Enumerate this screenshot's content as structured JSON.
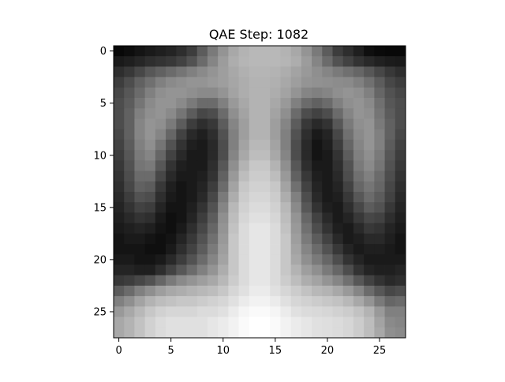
{
  "chart_data": {
    "type": "heatmap",
    "title": "QAE Step: 1082",
    "xlabel": "",
    "ylabel": "",
    "colormap": "gray",
    "rows": 28,
    "cols": 28,
    "x_ticks": [
      0,
      5,
      10,
      15,
      20,
      25
    ],
    "y_ticks": [
      0,
      5,
      10,
      15,
      20,
      25
    ],
    "xlim": [
      -0.5,
      27.5
    ],
    "ylim": [
      27.5,
      -0.5
    ],
    "value_range": [
      0,
      1
    ],
    "values": [
      [
        0.03,
        0.05,
        0.08,
        0.1,
        0.12,
        0.14,
        0.18,
        0.24,
        0.36,
        0.48,
        0.58,
        0.66,
        0.7,
        0.72,
        0.72,
        0.72,
        0.7,
        0.66,
        0.58,
        0.48,
        0.36,
        0.24,
        0.18,
        0.12,
        0.06,
        0.04,
        0.03,
        0.03
      ],
      [
        0.1,
        0.12,
        0.15,
        0.18,
        0.2,
        0.22,
        0.26,
        0.32,
        0.42,
        0.52,
        0.61,
        0.68,
        0.71,
        0.72,
        0.72,
        0.72,
        0.71,
        0.68,
        0.61,
        0.52,
        0.42,
        0.32,
        0.26,
        0.2,
        0.16,
        0.13,
        0.11,
        0.1
      ],
      [
        0.18,
        0.22,
        0.28,
        0.34,
        0.38,
        0.42,
        0.46,
        0.5,
        0.54,
        0.58,
        0.62,
        0.66,
        0.69,
        0.71,
        0.71,
        0.7,
        0.68,
        0.64,
        0.6,
        0.56,
        0.52,
        0.48,
        0.44,
        0.4,
        0.34,
        0.28,
        0.22,
        0.18
      ],
      [
        0.24,
        0.3,
        0.38,
        0.44,
        0.5,
        0.54,
        0.56,
        0.58,
        0.58,
        0.6,
        0.62,
        0.65,
        0.68,
        0.7,
        0.7,
        0.69,
        0.66,
        0.62,
        0.58,
        0.57,
        0.56,
        0.55,
        0.54,
        0.5,
        0.44,
        0.36,
        0.28,
        0.24
      ],
      [
        0.28,
        0.34,
        0.42,
        0.5,
        0.56,
        0.58,
        0.58,
        0.56,
        0.54,
        0.54,
        0.58,
        0.64,
        0.68,
        0.7,
        0.7,
        0.68,
        0.64,
        0.58,
        0.52,
        0.5,
        0.52,
        0.56,
        0.58,
        0.56,
        0.5,
        0.4,
        0.32,
        0.28
      ],
      [
        0.3,
        0.36,
        0.46,
        0.54,
        0.58,
        0.58,
        0.54,
        0.48,
        0.42,
        0.42,
        0.5,
        0.6,
        0.66,
        0.7,
        0.7,
        0.66,
        0.6,
        0.5,
        0.42,
        0.38,
        0.42,
        0.5,
        0.56,
        0.58,
        0.54,
        0.44,
        0.34,
        0.3
      ],
      [
        0.3,
        0.38,
        0.5,
        0.56,
        0.58,
        0.54,
        0.46,
        0.36,
        0.28,
        0.3,
        0.42,
        0.56,
        0.64,
        0.7,
        0.7,
        0.64,
        0.56,
        0.42,
        0.3,
        0.26,
        0.3,
        0.42,
        0.52,
        0.58,
        0.56,
        0.46,
        0.36,
        0.3
      ],
      [
        0.3,
        0.38,
        0.52,
        0.58,
        0.56,
        0.48,
        0.36,
        0.24,
        0.18,
        0.22,
        0.36,
        0.52,
        0.62,
        0.7,
        0.7,
        0.62,
        0.52,
        0.36,
        0.22,
        0.16,
        0.2,
        0.34,
        0.48,
        0.56,
        0.58,
        0.48,
        0.38,
        0.3
      ],
      [
        0.28,
        0.38,
        0.52,
        0.58,
        0.52,
        0.4,
        0.26,
        0.16,
        0.12,
        0.18,
        0.32,
        0.5,
        0.62,
        0.7,
        0.7,
        0.62,
        0.5,
        0.32,
        0.18,
        0.1,
        0.14,
        0.28,
        0.44,
        0.54,
        0.58,
        0.5,
        0.38,
        0.28
      ],
      [
        0.26,
        0.36,
        0.5,
        0.56,
        0.46,
        0.32,
        0.2,
        0.12,
        0.1,
        0.16,
        0.3,
        0.5,
        0.64,
        0.72,
        0.72,
        0.64,
        0.5,
        0.3,
        0.16,
        0.08,
        0.12,
        0.24,
        0.4,
        0.52,
        0.58,
        0.5,
        0.36,
        0.26
      ],
      [
        0.24,
        0.34,
        0.48,
        0.52,
        0.4,
        0.26,
        0.16,
        0.1,
        0.1,
        0.16,
        0.3,
        0.52,
        0.66,
        0.74,
        0.74,
        0.66,
        0.52,
        0.3,
        0.16,
        0.08,
        0.1,
        0.2,
        0.36,
        0.5,
        0.56,
        0.48,
        0.34,
        0.24
      ],
      [
        0.22,
        0.32,
        0.46,
        0.48,
        0.34,
        0.2,
        0.12,
        0.1,
        0.1,
        0.18,
        0.34,
        0.56,
        0.7,
        0.78,
        0.78,
        0.7,
        0.56,
        0.34,
        0.18,
        0.1,
        0.1,
        0.18,
        0.32,
        0.48,
        0.54,
        0.46,
        0.32,
        0.22
      ],
      [
        0.2,
        0.3,
        0.42,
        0.42,
        0.28,
        0.16,
        0.1,
        0.1,
        0.12,
        0.2,
        0.38,
        0.6,
        0.74,
        0.8,
        0.8,
        0.74,
        0.6,
        0.38,
        0.22,
        0.12,
        0.1,
        0.16,
        0.3,
        0.44,
        0.5,
        0.42,
        0.3,
        0.2
      ],
      [
        0.18,
        0.28,
        0.38,
        0.36,
        0.22,
        0.12,
        0.08,
        0.1,
        0.14,
        0.24,
        0.42,
        0.64,
        0.78,
        0.82,
        0.82,
        0.78,
        0.64,
        0.44,
        0.26,
        0.14,
        0.1,
        0.14,
        0.26,
        0.4,
        0.46,
        0.4,
        0.28,
        0.18
      ],
      [
        0.16,
        0.24,
        0.32,
        0.3,
        0.18,
        0.1,
        0.08,
        0.1,
        0.16,
        0.28,
        0.48,
        0.68,
        0.8,
        0.84,
        0.84,
        0.8,
        0.68,
        0.5,
        0.3,
        0.16,
        0.1,
        0.12,
        0.22,
        0.34,
        0.42,
        0.36,
        0.26,
        0.16
      ],
      [
        0.14,
        0.2,
        0.26,
        0.24,
        0.14,
        0.08,
        0.08,
        0.12,
        0.2,
        0.32,
        0.52,
        0.72,
        0.82,
        0.86,
        0.86,
        0.82,
        0.72,
        0.54,
        0.34,
        0.2,
        0.12,
        0.1,
        0.18,
        0.28,
        0.36,
        0.32,
        0.22,
        0.14
      ],
      [
        0.12,
        0.16,
        0.2,
        0.18,
        0.1,
        0.06,
        0.08,
        0.14,
        0.24,
        0.36,
        0.56,
        0.74,
        0.84,
        0.88,
        0.88,
        0.84,
        0.74,
        0.58,
        0.4,
        0.26,
        0.16,
        0.1,
        0.14,
        0.22,
        0.28,
        0.26,
        0.18,
        0.12
      ],
      [
        0.1,
        0.12,
        0.14,
        0.12,
        0.08,
        0.06,
        0.1,
        0.18,
        0.28,
        0.4,
        0.58,
        0.76,
        0.86,
        0.9,
        0.9,
        0.86,
        0.76,
        0.6,
        0.44,
        0.3,
        0.2,
        0.12,
        0.1,
        0.16,
        0.22,
        0.2,
        0.14,
        0.1
      ],
      [
        0.08,
        0.1,
        0.1,
        0.08,
        0.06,
        0.08,
        0.14,
        0.22,
        0.32,
        0.44,
        0.6,
        0.78,
        0.86,
        0.9,
        0.9,
        0.86,
        0.78,
        0.62,
        0.48,
        0.36,
        0.26,
        0.16,
        0.1,
        0.12,
        0.16,
        0.16,
        0.12,
        0.08
      ],
      [
        0.08,
        0.08,
        0.08,
        0.06,
        0.06,
        0.1,
        0.18,
        0.26,
        0.36,
        0.48,
        0.62,
        0.78,
        0.86,
        0.9,
        0.9,
        0.86,
        0.78,
        0.64,
        0.52,
        0.42,
        0.32,
        0.22,
        0.14,
        0.1,
        0.12,
        0.12,
        0.1,
        0.08
      ],
      [
        0.1,
        0.1,
        0.08,
        0.08,
        0.1,
        0.16,
        0.24,
        0.32,
        0.42,
        0.52,
        0.64,
        0.78,
        0.86,
        0.9,
        0.9,
        0.86,
        0.78,
        0.66,
        0.56,
        0.48,
        0.4,
        0.3,
        0.2,
        0.14,
        0.1,
        0.1,
        0.1,
        0.1
      ],
      [
        0.14,
        0.14,
        0.12,
        0.12,
        0.18,
        0.26,
        0.34,
        0.42,
        0.5,
        0.58,
        0.68,
        0.78,
        0.86,
        0.9,
        0.9,
        0.86,
        0.78,
        0.7,
        0.62,
        0.56,
        0.48,
        0.4,
        0.3,
        0.2,
        0.14,
        0.12,
        0.12,
        0.14
      ],
      [
        0.22,
        0.24,
        0.28,
        0.32,
        0.4,
        0.48,
        0.54,
        0.58,
        0.62,
        0.66,
        0.72,
        0.8,
        0.86,
        0.9,
        0.9,
        0.86,
        0.8,
        0.74,
        0.68,
        0.64,
        0.58,
        0.52,
        0.44,
        0.34,
        0.26,
        0.2,
        0.16,
        0.18
      ],
      [
        0.36,
        0.42,
        0.5,
        0.56,
        0.62,
        0.66,
        0.68,
        0.7,
        0.72,
        0.74,
        0.78,
        0.84,
        0.88,
        0.92,
        0.92,
        0.88,
        0.84,
        0.8,
        0.76,
        0.72,
        0.7,
        0.66,
        0.6,
        0.52,
        0.42,
        0.34,
        0.28,
        0.3
      ],
      [
        0.5,
        0.56,
        0.64,
        0.7,
        0.74,
        0.76,
        0.78,
        0.78,
        0.8,
        0.82,
        0.84,
        0.88,
        0.92,
        0.95,
        0.95,
        0.92,
        0.88,
        0.84,
        0.82,
        0.8,
        0.78,
        0.76,
        0.72,
        0.66,
        0.58,
        0.48,
        0.4,
        0.42
      ],
      [
        0.6,
        0.66,
        0.72,
        0.78,
        0.82,
        0.84,
        0.84,
        0.84,
        0.86,
        0.86,
        0.88,
        0.92,
        0.96,
        0.98,
        0.98,
        0.96,
        0.92,
        0.88,
        0.86,
        0.85,
        0.84,
        0.82,
        0.8,
        0.76,
        0.7,
        0.6,
        0.5,
        0.5
      ],
      [
        0.66,
        0.7,
        0.76,
        0.82,
        0.86,
        0.88,
        0.88,
        0.88,
        0.88,
        0.9,
        0.92,
        0.95,
        0.98,
        1.0,
        1.0,
        0.98,
        0.95,
        0.92,
        0.9,
        0.88,
        0.87,
        0.86,
        0.84,
        0.8,
        0.74,
        0.64,
        0.54,
        0.52
      ],
      [
        0.66,
        0.7,
        0.76,
        0.82,
        0.86,
        0.88,
        0.88,
        0.88,
        0.88,
        0.9,
        0.92,
        0.95,
        0.98,
        1.0,
        1.0,
        0.98,
        0.95,
        0.92,
        0.9,
        0.88,
        0.87,
        0.86,
        0.84,
        0.8,
        0.74,
        0.66,
        0.56,
        0.54
      ]
    ]
  }
}
